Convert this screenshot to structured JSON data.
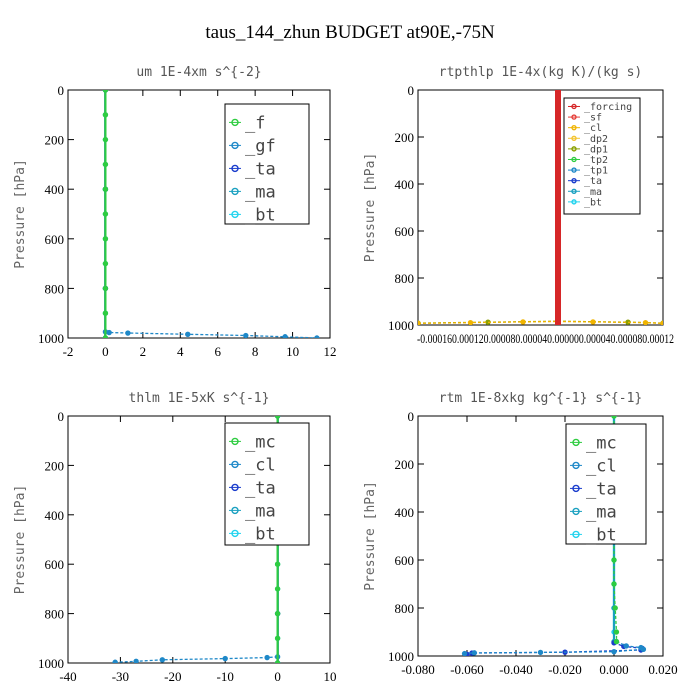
{
  "page_title": "taus_144_zhun  BUDGET at90E,-75N",
  "chart_data": [
    {
      "type": "line",
      "title": "um  1E-4xm s^{-2}",
      "ylabel": "Pressure [hPa]",
      "xlim": [
        -2,
        12
      ],
      "ylim": [
        1000,
        0
      ],
      "xticks": [
        "-2",
        "0",
        "2",
        "4",
        "6",
        "8",
        "10",
        "12"
      ],
      "yticks": [
        "0",
        "200",
        "400",
        "600",
        "800",
        "1000"
      ],
      "legend_position": "top-right",
      "series": [
        {
          "name": "_f",
          "color": "#2ecc40",
          "x": [
            0,
            0,
            0,
            0,
            0,
            0,
            0,
            0,
            0,
            0,
            0
          ],
          "y": [
            0,
            100,
            200,
            300,
            400,
            500,
            600,
            700,
            800,
            900,
            1000
          ]
        },
        {
          "name": "_gf",
          "color": "#1e88c8",
          "x": [
            0,
            0.2,
            1.2,
            4.4,
            7.5,
            9.6,
            11.3
          ],
          "y": [
            975,
            978,
            980,
            985,
            990,
            995,
            1000
          ]
        },
        {
          "name": "_ta",
          "color": "#1a3ccc",
          "x": [
            0,
            0,
            0,
            0
          ],
          "y": [
            0,
            400,
            800,
            1000
          ]
        },
        {
          "name": "_ma",
          "color": "#1aa0c0",
          "x": [
            0,
            0,
            0,
            0
          ],
          "y": [
            0,
            400,
            800,
            1000
          ]
        },
        {
          "name": "_bt",
          "color": "#22d3ee",
          "x": [
            0,
            0,
            0,
            0,
            0,
            0,
            0,
            0,
            0,
            0,
            0
          ],
          "y": [
            0,
            100,
            200,
            300,
            400,
            500,
            600,
            700,
            800,
            900,
            1000
          ]
        }
      ]
    },
    {
      "type": "line",
      "title": "rtpthlp  1E-4x(kg K)/(kg s)",
      "ylabel": "Pressure [hPa]",
      "xlim": [
        -0.00016,
        0.00012
      ],
      "ylim": [
        1000,
        0
      ],
      "xticks": [
        "-0.00016",
        "0.00012"
      ],
      "xtick_values": [
        -0.00016,
        0.00012
      ],
      "xtick_text": "-0.000160.000120.000080.000040.000000.000040.000080.00012",
      "yticks": [
        "0",
        "200",
        "400",
        "600",
        "800",
        "1000"
      ],
      "legend_position": "top-right",
      "series": [
        {
          "name": "_forcing",
          "color": "#d62728",
          "x": [
            0,
            0,
            0,
            0,
            0,
            0,
            0,
            0,
            0,
            0,
            0
          ],
          "y": [
            0,
            100,
            200,
            300,
            400,
            500,
            600,
            700,
            800,
            900,
            1000
          ]
        },
        {
          "name": "_sf",
          "color": "#e5403a",
          "x": [
            0,
            0,
            0
          ],
          "y": [
            0,
            500,
            1000
          ]
        },
        {
          "name": "_cl",
          "color": "#f0b400",
          "x": [
            -0.00016,
            -0.0001,
            -4e-05,
            0,
            4e-05,
            0.0001,
            0.00012
          ],
          "y": [
            993,
            990,
            987,
            985,
            987,
            990,
            993
          ]
        },
        {
          "name": "_dp2",
          "color": "#f4c430",
          "x": [
            0,
            0,
            0
          ],
          "y": [
            0,
            500,
            1000
          ]
        },
        {
          "name": "_dp1",
          "color": "#8aa000",
          "x": [
            -0.00016,
            -8e-05,
            0,
            8e-05,
            0.00012
          ],
          "y": [
            992,
            988,
            984,
            988,
            992
          ]
        },
        {
          "name": "_tp2",
          "color": "#2ecc40",
          "x": [
            0,
            0,
            0
          ],
          "y": [
            0,
            500,
            1000
          ]
        },
        {
          "name": "_tp1",
          "color": "#1e88c8",
          "x": [
            0,
            0,
            0
          ],
          "y": [
            0,
            500,
            1000
          ]
        },
        {
          "name": "_ta",
          "color": "#1a3ccc",
          "x": [
            0,
            0,
            0
          ],
          "y": [
            0,
            500,
            1000
          ]
        },
        {
          "name": "_ma",
          "color": "#1aa0c0",
          "x": [
            0,
            0,
            0
          ],
          "y": [
            0,
            500,
            1000
          ]
        },
        {
          "name": "_bt",
          "color": "#22d3ee",
          "x": [
            0,
            0,
            0
          ],
          "y": [
            0,
            500,
            1000
          ]
        }
      ]
    },
    {
      "type": "line",
      "title": "thlm  1E-5xK s^{-1}",
      "ylabel": "Pressure [hPa]",
      "xlim": [
        -40,
        10
      ],
      "ylim": [
        1000,
        0
      ],
      "xticks": [
        "-40",
        "-30",
        "-20",
        "-10",
        "0",
        "10"
      ],
      "yticks": [
        "0",
        "200",
        "400",
        "600",
        "800",
        "1000"
      ],
      "legend_position": "top-right",
      "series": [
        {
          "name": "_mc",
          "color": "#2ecc40",
          "x": [
            0,
            0,
            0,
            0,
            0,
            0,
            0,
            0,
            0,
            0,
            0
          ],
          "y": [
            0,
            100,
            200,
            300,
            400,
            500,
            600,
            700,
            800,
            900,
            1000
          ]
        },
        {
          "name": "_cl",
          "color": "#1e88c8",
          "x": [
            0,
            -2,
            -10,
            -22,
            -27,
            -31
          ],
          "y": [
            975,
            978,
            982,
            987,
            993,
            997
          ]
        },
        {
          "name": "_ta",
          "color": "#1a3ccc",
          "x": [
            0,
            0,
            0,
            0
          ],
          "y": [
            0,
            400,
            800,
            1000
          ]
        },
        {
          "name": "_ma",
          "color": "#1aa0c0",
          "x": [
            0,
            0,
            0,
            0
          ],
          "y": [
            0,
            400,
            800,
            1000
          ]
        },
        {
          "name": "_bt",
          "color": "#22d3ee",
          "x": [
            0,
            0,
            0,
            0,
            0,
            0,
            0,
            0,
            0,
            0,
            0
          ],
          "y": [
            0,
            100,
            200,
            300,
            400,
            500,
            600,
            700,
            800,
            900,
            1000
          ]
        }
      ]
    },
    {
      "type": "line",
      "title": "rtm  1E-8xkg kg^{-1} s^{-1}",
      "ylabel": "Pressure [hPa]",
      "xlim": [
        -0.08,
        0.02
      ],
      "ylim": [
        1000,
        0
      ],
      "xticks": [
        "-0.080",
        "-0.060",
        "-0.040",
        "-0.020",
        "0.000",
        "0.020"
      ],
      "yticks": [
        "0",
        "200",
        "400",
        "600",
        "800",
        "1000"
      ],
      "legend_position": "top-right",
      "series": [
        {
          "name": "_mc",
          "color": "#2ecc40",
          "x": [
            0,
            0,
            0,
            0,
            0,
            0,
            0,
            0,
            0.0005,
            0.001,
            0.001
          ],
          "y": [
            0,
            100,
            200,
            300,
            400,
            500,
            600,
            700,
            800,
            900,
            940
          ]
        },
        {
          "name": "_cl",
          "color": "#1e88c8",
          "x": [
            0.001,
            0.005,
            0.011,
            0.012,
            0,
            -0.03,
            -0.057,
            -0.061
          ],
          "y": [
            940,
            958,
            965,
            972,
            982,
            985,
            987,
            990
          ]
        },
        {
          "name": "_ta",
          "color": "#1a3ccc",
          "x": [
            0,
            0.004,
            0.0115,
            0.011,
            -0.02,
            -0.058,
            -0.06
          ],
          "y": [
            945,
            960,
            968,
            975,
            984,
            988,
            993
          ]
        },
        {
          "name": "_ma",
          "color": "#1aa0c0",
          "x": [
            0,
            0,
            0,
            0
          ],
          "y": [
            0,
            400,
            800,
            940
          ]
        },
        {
          "name": "_bt",
          "color": "#22d3ee",
          "x": [
            0,
            0,
            0,
            0,
            0,
            0,
            0,
            0,
            0,
            0
          ],
          "y": [
            0,
            100,
            200,
            300,
            400,
            500,
            600,
            700,
            800,
            900
          ]
        }
      ]
    }
  ]
}
